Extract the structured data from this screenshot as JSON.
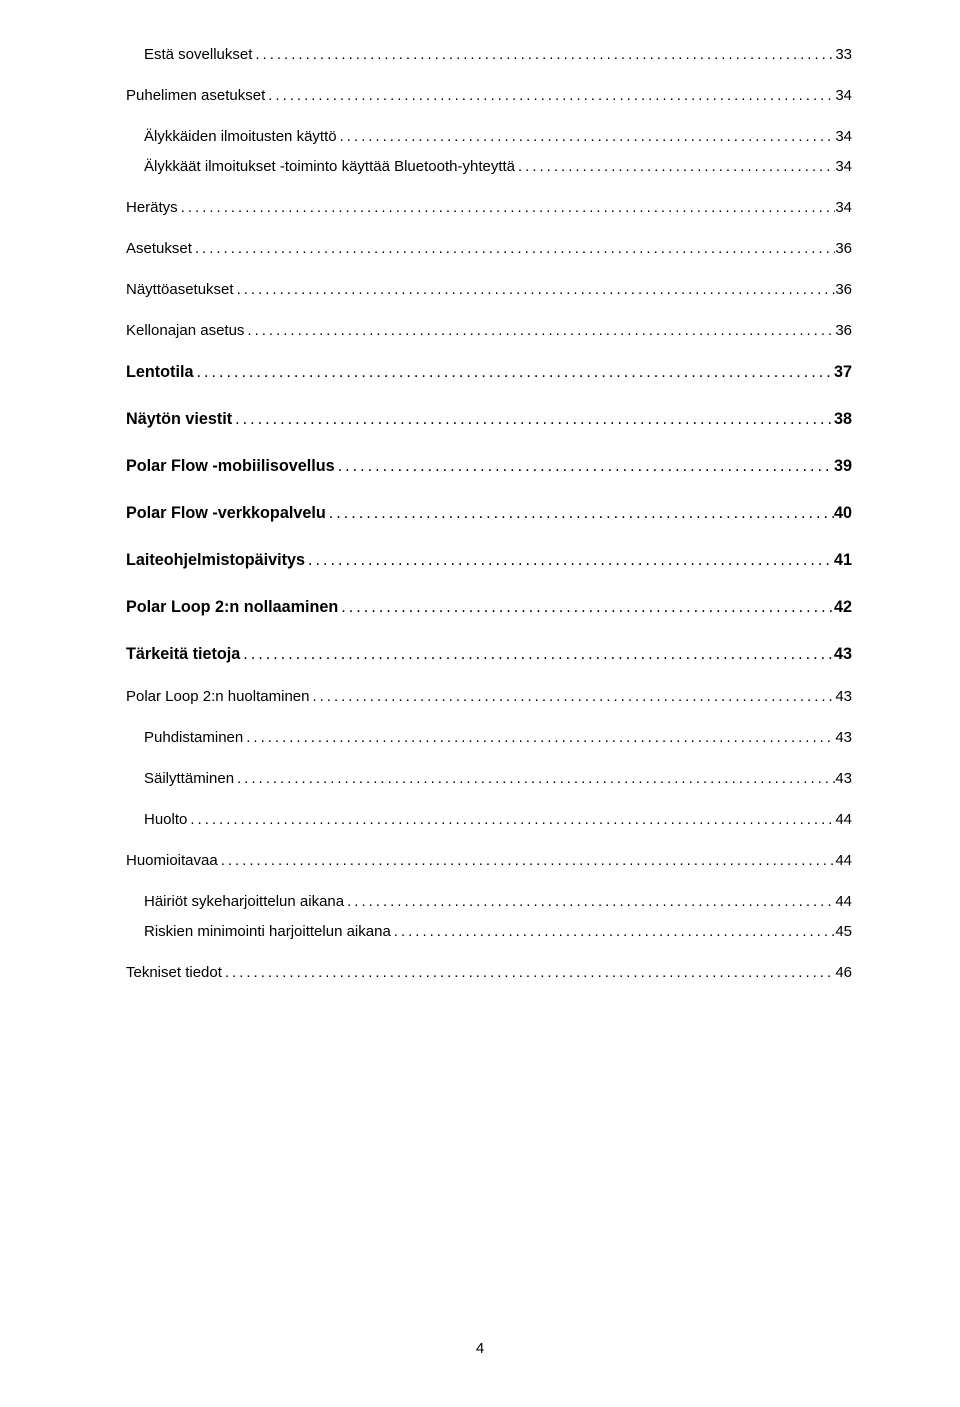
{
  "page_number": "4",
  "dot_fill": "..................................................................................................................................................................................................................................",
  "entries": [
    {
      "label": "Estä sovellukset",
      "page": "33",
      "indent": 1,
      "bold": false,
      "size": "fs-15",
      "gap": "gap-med"
    },
    {
      "label": "Puhelimen asetukset",
      "page": "34",
      "indent": 0,
      "bold": false,
      "size": "fs-15",
      "gap": "gap-med"
    },
    {
      "label": "Älykkäiden ilmoitusten käyttö",
      "page": "34",
      "indent": 1,
      "bold": false,
      "size": "fs-15",
      "gap": "gap-small"
    },
    {
      "label": "Älykkäät ilmoitukset -toiminto käyttää Bluetooth-yhteyttä",
      "page": "34",
      "indent": 1,
      "bold": false,
      "size": "fs-15",
      "gap": "gap-med"
    },
    {
      "label": "Herätys",
      "page": "34",
      "indent": 0,
      "bold": false,
      "size": "fs-15",
      "gap": "gap-med"
    },
    {
      "label": "Asetukset",
      "page": "36",
      "indent": 0,
      "bold": false,
      "size": "fs-15",
      "gap": "gap-med"
    },
    {
      "label": "Näyttöasetukset",
      "page": "36",
      "indent": 0,
      "bold": false,
      "size": "fs-15",
      "gap": "gap-med"
    },
    {
      "label": "Kellonajan asetus",
      "page": "36",
      "indent": 0,
      "bold": false,
      "size": "fs-15",
      "gap": "gap-med"
    },
    {
      "label": "Lentotila",
      "page": "37",
      "indent": 0,
      "bold": true,
      "size": "fs-16",
      "gap": "gap-large"
    },
    {
      "label": "Näytön viestit",
      "page": "38",
      "indent": 0,
      "bold": true,
      "size": "fs-16",
      "gap": "gap-large"
    },
    {
      "label": "Polar Flow -mobiilisovellus",
      "page": "39",
      "indent": 0,
      "bold": true,
      "size": "fs-16",
      "gap": "gap-large"
    },
    {
      "label": "Polar Flow -verkkopalvelu",
      "page": "40",
      "indent": 0,
      "bold": true,
      "size": "fs-16",
      "gap": "gap-large"
    },
    {
      "label": "Laiteohjelmistopäivitys",
      "page": "41",
      "indent": 0,
      "bold": true,
      "size": "fs-16",
      "gap": "gap-large"
    },
    {
      "label": "Polar Loop 2:n nollaaminen",
      "page": "42",
      "indent": 0,
      "bold": true,
      "size": "fs-16",
      "gap": "gap-large"
    },
    {
      "label": "Tärkeitä tietoja",
      "page": "43",
      "indent": 0,
      "bold": true,
      "size": "fs-16",
      "gap": "gap-med"
    },
    {
      "label": "Polar Loop 2:n huoltaminen",
      "page": "43",
      "indent": 0,
      "bold": false,
      "size": "fs-15",
      "gap": "gap-med"
    },
    {
      "label": "Puhdistaminen",
      "page": "43",
      "indent": 1,
      "bold": false,
      "size": "fs-15",
      "gap": "gap-med"
    },
    {
      "label": "Säilyttäminen",
      "page": "43",
      "indent": 1,
      "bold": false,
      "size": "fs-15",
      "gap": "gap-med"
    },
    {
      "label": "Huolto",
      "page": "44",
      "indent": 1,
      "bold": false,
      "size": "fs-15",
      "gap": "gap-med"
    },
    {
      "label": "Huomioitavaa",
      "page": "44",
      "indent": 0,
      "bold": false,
      "size": "fs-15",
      "gap": "gap-med"
    },
    {
      "label": "Häiriöt sykeharjoittelun aikana",
      "page": "44",
      "indent": 1,
      "bold": false,
      "size": "fs-15",
      "gap": "gap-small"
    },
    {
      "label": "Riskien minimointi harjoittelun aikana",
      "page": "45",
      "indent": 1,
      "bold": false,
      "size": "fs-15",
      "gap": "gap-med"
    },
    {
      "label": "Tekniset tiedot",
      "page": "46",
      "indent": 0,
      "bold": false,
      "size": "fs-15",
      "gap": "gap-med"
    }
  ]
}
